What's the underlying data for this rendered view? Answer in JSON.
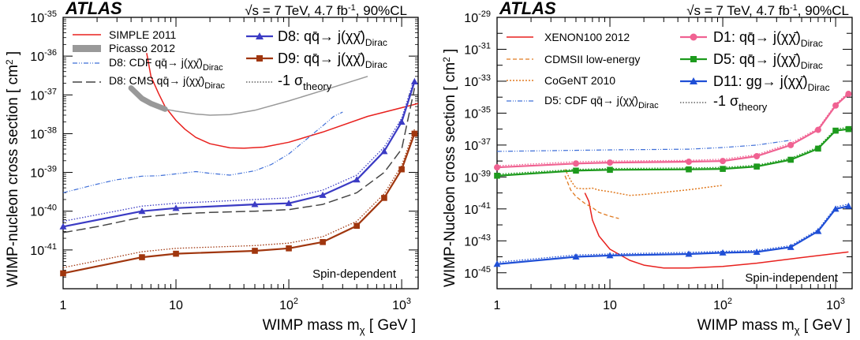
{
  "chart_data": [
    {
      "type": "line",
      "header": {
        "experiment": "ATLAS",
        "energy": "√s = 7 TeV, 4.7 fb",
        "energy_sup": "-1",
        "cl": ", 90%CL"
      },
      "xlabel": "WIMP mass m",
      "xlabel_sub": "χ",
      "xlabel_unit": " [ GeV ]",
      "ylabel": "WIMP-nucleon cross section [ cm",
      "ylabel_sup": "2",
      "ylabel_end": " ]",
      "xscale": "log",
      "yscale": "log",
      "xlim": [
        1,
        1400
      ],
      "ylim": [
        1e-42,
        1e-35
      ],
      "xticks": [
        {
          "v": 1,
          "t": "1"
        },
        {
          "v": 10,
          "t": "10"
        },
        {
          "v": 100,
          "t": "10",
          "e": "2"
        },
        {
          "v": 1000,
          "t": "10",
          "e": "3"
        }
      ],
      "yticks": [
        {
          "v": 1e-35,
          "t": "10",
          "e": "-35"
        },
        {
          "v": 1e-36,
          "t": "10",
          "e": "-36"
        },
        {
          "v": 1e-37,
          "t": "10",
          "e": "-37"
        },
        {
          "v": 1e-38,
          "t": "10",
          "e": "-38"
        },
        {
          "v": 1e-39,
          "t": "10",
          "e": "-39"
        },
        {
          "v": 1e-40,
          "t": "10",
          "e": "-40"
        },
        {
          "v": 1e-41,
          "t": "10",
          "e": "-41"
        }
      ],
      "corner_text": "Spin-dependent",
      "series": [
        {
          "id": "simple",
          "name": "SIMPLE 2011",
          "color": "#e8211e",
          "style": "solid",
          "width": 1.5,
          "x": [
            5.5,
            6,
            7,
            8,
            10,
            12,
            15,
            20,
            30,
            40,
            60,
            100,
            200,
            500,
            1400
          ],
          "y": [
            1.2e-36,
            3e-37,
            1.1e-37,
            5e-38,
            2.2e-38,
            1.3e-38,
            8e-39,
            5.5e-39,
            4.3e-39,
            4.2e-39,
            4.5e-39,
            6e-39,
            1.1e-38,
            2.8e-38,
            6e-38
          ]
        },
        {
          "id": "picasso",
          "name": "Picasso 2012",
          "color": "#999999",
          "style": "band",
          "width": 1.5,
          "x": [
            4,
            5,
            6,
            8,
            10,
            15,
            20,
            30,
            50,
            100,
            200,
            500
          ],
          "y": [
            1.5e-37,
            8e-38,
            6e-38,
            4.3e-38,
            3.8e-38,
            3.2e-38,
            3e-38,
            3.1e-38,
            4e-38,
            7e-38,
            1.3e-37,
            3e-37
          ]
        },
        {
          "id": "cdf",
          "name": "D8: CDF qq̄→ j(χχ̄)",
          "name_sub": "Dirac",
          "color": "#3f6fd8",
          "style": "dashdot",
          "width": 1.2,
          "x": [
            1,
            2,
            3,
            5,
            7,
            10,
            15,
            20,
            30,
            50,
            70,
            100,
            150,
            200,
            250,
            300
          ],
          "y": [
            3e-40,
            5e-40,
            6.5e-40,
            8e-40,
            8.2e-40,
            9.2e-40,
            1.05e-39,
            9.5e-40,
            8.5e-40,
            1.1e-39,
            1.6e-39,
            3e-39,
            8e-39,
            1.6e-38,
            2.8e-38,
            3.6e-38
          ]
        },
        {
          "id": "cms",
          "name": "D8: CMS qq̄→ j(χχ̄)",
          "name_sub": "Dirac",
          "color": "#444444",
          "style": "longdash",
          "width": 1.5,
          "x": [
            1,
            2,
            5,
            10,
            20,
            50,
            100,
            200,
            400,
            700,
            1000,
            1300
          ],
          "y": [
            2.8e-41,
            4e-41,
            7e-41,
            8.5e-41,
            9.3e-41,
            1e-40,
            1.1e-40,
            1.5e-40,
            3e-40,
            1e-39,
            4e-39,
            1.5e-37
          ]
        },
        {
          "id": "d8",
          "name": "D8: qq̄→ j(χχ̄)",
          "name_sub": "Dirac",
          "color": "#3b3bc4",
          "style": "solid",
          "width": 2.2,
          "marker": "triangle",
          "x": [
            1,
            5,
            10,
            50,
            100,
            200,
            400,
            700,
            1000,
            1300
          ],
          "y": [
            4e-41,
            1e-40,
            1.2e-40,
            1.5e-40,
            1.6e-40,
            2.6e-40,
            6.5e-40,
            3.5e-39,
            2e-38,
            2.2e-37
          ],
          "theory": {
            "x": [
              1,
              5,
              10,
              50,
              100,
              200,
              400,
              700,
              1000,
              1300
            ],
            "y": [
              5.5e-41,
              1.35e-40,
              1.6e-40,
              2e-40,
              2.2e-40,
              3.5e-40,
              8.5e-40,
              4.5e-39,
              2.5e-38,
              2.7e-37
            ]
          }
        },
        {
          "id": "d9",
          "name": "D9: qq̄→ j(χχ̄)",
          "name_sub": "Dirac",
          "color": "#a0360e",
          "style": "solid",
          "width": 2.2,
          "marker": "square",
          "x": [
            1,
            5,
            10,
            50,
            100,
            200,
            400,
            700,
            1000,
            1300
          ],
          "y": [
            2.5e-42,
            6.5e-42,
            8e-42,
            9.5e-42,
            1.1e-41,
            1.6e-41,
            4.2e-41,
            2.2e-40,
            1.2e-39,
            1e-38
          ],
          "theory": {
            "x": [
              1,
              5,
              10,
              50,
              100,
              200,
              400,
              700,
              1000,
              1300
            ],
            "y": [
              3.5e-42,
              9e-42,
              1.1e-41,
              1.3e-41,
              1.5e-41,
              2.2e-41,
              5.5e-41,
              2.8e-40,
              1.5e-39,
              1.3e-38
            ]
          }
        }
      ],
      "theory_label": "-1 σ",
      "theory_sub": "theory"
    },
    {
      "type": "line",
      "header": {
        "experiment": "ATLAS",
        "energy": "√s = 7 TeV, 4.7 fb",
        "energy_sup": "-1",
        "cl": ", 90%CL"
      },
      "xlabel": "WIMP mass m",
      "xlabel_sub": "χ",
      "xlabel_unit": " [ GeV ]",
      "ylabel": "WIMP-Nucleon cross section [ cm",
      "ylabel_sup": "2",
      "ylabel_end": " ]",
      "xscale": "log",
      "yscale": "log",
      "xlim": [
        1,
        1400
      ],
      "ylim": [
        1e-46,
        1e-29
      ],
      "xticks": [
        {
          "v": 1,
          "t": "1"
        },
        {
          "v": 10,
          "t": "10"
        },
        {
          "v": 100,
          "t": "10",
          "e": "2"
        },
        {
          "v": 1000,
          "t": "10",
          "e": "3"
        }
      ],
      "yticks": [
        {
          "v": 1e-29,
          "t": "10",
          "e": "-29"
        },
        {
          "v": 1e-31,
          "t": "10",
          "e": "-31"
        },
        {
          "v": 1e-33,
          "t": "10",
          "e": "-33"
        },
        {
          "v": 1e-35,
          "t": "10",
          "e": "-35"
        },
        {
          "v": 1e-37,
          "t": "10",
          "e": "-37"
        },
        {
          "v": 1e-39,
          "t": "10",
          "e": "-39"
        },
        {
          "v": 1e-41,
          "t": "10",
          "e": "-41"
        },
        {
          "v": 1e-43,
          "t": "10",
          "e": "-43"
        },
        {
          "v": 1e-45,
          "t": "10",
          "e": "-45"
        }
      ],
      "corner_text": "Spin-independent",
      "series": [
        {
          "id": "xenon",
          "name": "XENON100 2012",
          "color": "#e8211e",
          "style": "solid",
          "width": 1.5,
          "x": [
            6,
            6.5,
            7,
            8,
            10,
            15,
            20,
            30,
            50,
            100,
            200,
            500,
            1300
          ],
          "y": [
            1e-40,
            3e-41,
            2e-42,
            2e-43,
            3e-44,
            6e-45,
            3e-45,
            2e-45,
            2e-45,
            2.5e-45,
            4e-45,
            9e-45,
            2e-44
          ]
        },
        {
          "id": "cdms",
          "name": "CDMSII low-energy",
          "color": "#e07a20",
          "style": "dashed",
          "width": 1.3,
          "x": [
            4,
            4.5,
            5,
            6,
            7,
            8,
            10,
            12
          ],
          "y": [
            1.2e-39,
            1.5e-40,
            6e-41,
            2.2e-41,
            1.2e-41,
            6e-42,
            3.5e-42,
            2.5e-42
          ]
        },
        {
          "id": "cogent",
          "name": "CoGeNT 2010",
          "color": "#e07a20",
          "style": "dotted",
          "width": 1.5,
          "x": [
            4,
            4.5,
            5,
            6,
            7,
            8,
            10,
            15,
            20,
            50,
            100
          ],
          "y": [
            3e-39,
            6e-40,
            2e-40,
            1.8e-40,
            2e-40,
            1.5e-40,
            1.2e-40,
            7e-41,
            8e-41,
            1.6e-40,
            3e-40
          ]
        },
        {
          "id": "cdf5",
          "name": "D5: CDF qq̄→ j(χχ̄)",
          "name_sub": "Dirac",
          "color": "#3f6fd8",
          "style": "dashdot",
          "width": 1.2,
          "x": [
            1,
            10,
            50,
            100,
            200,
            300,
            400
          ],
          "y": [
            4e-38,
            5e-38,
            5.5e-38,
            7e-38,
            1e-37,
            1.5e-37,
            2e-37
          ]
        },
        {
          "id": "d1",
          "name": "D1: qq̄→ j(χχ̄)",
          "name_sub": "Dirac",
          "color": "#f06292",
          "style": "solid",
          "width": 2.2,
          "marker": "circle",
          "x": [
            1,
            5,
            10,
            50,
            100,
            200,
            400,
            700,
            1000,
            1300
          ],
          "y": [
            4e-39,
            7e-39,
            8e-39,
            9e-39,
            1e-38,
            2e-38,
            1e-37,
            9e-37,
            3e-35,
            1.6e-34
          ],
          "theory": {
            "x": [
              1,
              5,
              10,
              50,
              100,
              200,
              400,
              700,
              1000,
              1300
            ],
            "y": [
              5e-39,
              9e-39,
              1e-38,
              1.1e-38,
              1.3e-38,
              2.5e-38,
              1.3e-37,
              1.1e-36,
              3.6e-35,
              2e-34
            ]
          }
        },
        {
          "id": "d5",
          "name": "D5: qq̄→ j(χχ̄)",
          "name_sub": "Dirac",
          "color": "#1d9a1d",
          "style": "solid",
          "width": 2.2,
          "marker": "square",
          "x": [
            1,
            5,
            10,
            50,
            100,
            200,
            400,
            700,
            1000,
            1300
          ],
          "y": [
            1.2e-39,
            2.5e-39,
            2.8e-39,
            3e-39,
            3.2e-39,
            4.5e-39,
            1.2e-38,
            6e-38,
            8e-37,
            1e-36
          ],
          "theory": {
            "x": [
              1,
              5,
              10,
              50,
              100,
              200,
              400,
              700,
              1000,
              1300
            ],
            "y": [
              1.5e-39,
              3e-39,
              3.4e-39,
              3.7e-39,
              4e-39,
              5.5e-39,
              1.5e-38,
              7.5e-38,
              1e-36,
              1.3e-36
            ]
          }
        },
        {
          "id": "d11",
          "name": "D11: gg→ j(χχ̄)",
          "name_sub": "Dirac",
          "color": "#1f4fd6",
          "style": "solid",
          "width": 2.2,
          "marker": "triangle",
          "x": [
            1,
            5,
            10,
            50,
            100,
            200,
            400,
            700,
            1000,
            1300
          ],
          "y": [
            3.5e-45,
            1e-44,
            1.2e-44,
            1.5e-44,
            1.8e-44,
            2e-44,
            4e-44,
            4e-43,
            1e-41,
            1.5e-41
          ],
          "theory": {
            "x": [
              1,
              5,
              10,
              50,
              100,
              200,
              400,
              700,
              1000,
              1300
            ],
            "y": [
              4.5e-45,
              1.3e-44,
              1.5e-44,
              1.9e-44,
              2.2e-44,
              2.5e-44,
              5e-44,
              5e-43,
              1.3e-41,
              2e-41
            ]
          }
        }
      ],
      "theory_label": "-1 σ",
      "theory_sub": "theory"
    }
  ]
}
